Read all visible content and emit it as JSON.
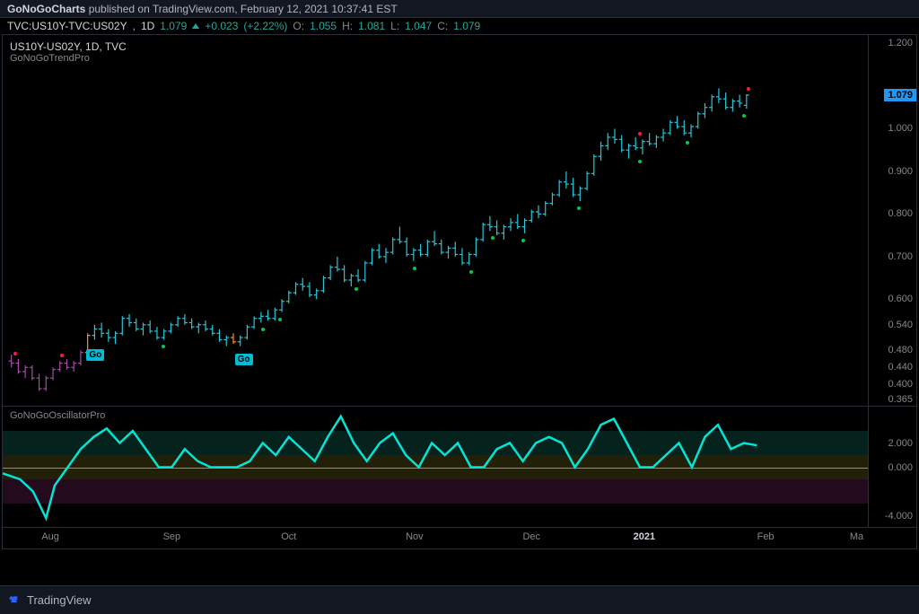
{
  "header": {
    "publisher": "GoNoGoCharts",
    "published_on": "published on TradingView.com,",
    "timestamp": "February 12, 2021 10:37:41 EST"
  },
  "ticker": {
    "symbol": "TVC:US10Y-TVC:US02Y",
    "interval": "1D",
    "last": "1.079",
    "change": "+0.023",
    "change_pct": "(+2.22%)",
    "ohlc": {
      "O": "1.055",
      "H": "1.081",
      "L": "1.047",
      "C": "1.079"
    }
  },
  "main_chart": {
    "legend_title": "US10Y-US02Y, 1D, TVC",
    "legend_sub": "GoNoGoTrendPro",
    "y_ticks": [
      1.2,
      1.0,
      0.9,
      0.8,
      0.7,
      0.6,
      0.54,
      0.48,
      0.44,
      0.4,
      0.365
    ],
    "y_min": 0.35,
    "y_max": 1.22,
    "price_tag": 1.079,
    "bar_color_early": "#a64ca6",
    "bar_color_trend": "#26c6da",
    "go_labels": [
      {
        "x": 0.105,
        "y_val": 0.5,
        "text": "Go"
      },
      {
        "x": 0.276,
        "y_val": 0.49,
        "text": "Go"
      }
    ],
    "green_dots_x": [
      0.185,
      0.3,
      0.32,
      0.408,
      0.475,
      0.54,
      0.565,
      0.6,
      0.665,
      0.735,
      0.79,
      0.855
    ],
    "red_dots_x": [
      0.015,
      0.068,
      0.735,
      0.86
    ],
    "bars": [
      {
        "x": 0.01,
        "o": 0.455,
        "h": 0.47,
        "l": 0.44,
        "c": 0.45,
        "col": "#a64ca6"
      },
      {
        "x": 0.018,
        "o": 0.45,
        "h": 0.46,
        "l": 0.425,
        "c": 0.43,
        "col": "#a64ca6"
      },
      {
        "x": 0.026,
        "o": 0.43,
        "h": 0.445,
        "l": 0.415,
        "c": 0.44,
        "col": "#a64ca6"
      },
      {
        "x": 0.034,
        "o": 0.44,
        "h": 0.445,
        "l": 0.41,
        "c": 0.415,
        "col": "#a64ca6"
      },
      {
        "x": 0.042,
        "o": 0.415,
        "h": 0.425,
        "l": 0.385,
        "c": 0.39,
        "col": "#a64ca6"
      },
      {
        "x": 0.05,
        "o": 0.39,
        "h": 0.42,
        "l": 0.385,
        "c": 0.415,
        "col": "#a64ca6"
      },
      {
        "x": 0.058,
        "o": 0.415,
        "h": 0.44,
        "l": 0.41,
        "c": 0.435,
        "col": "#a64ca6"
      },
      {
        "x": 0.066,
        "o": 0.435,
        "h": 0.455,
        "l": 0.43,
        "c": 0.45,
        "col": "#a64ca6"
      },
      {
        "x": 0.074,
        "o": 0.45,
        "h": 0.46,
        "l": 0.435,
        "c": 0.44,
        "col": "#a64ca6"
      },
      {
        "x": 0.082,
        "o": 0.44,
        "h": 0.455,
        "l": 0.43,
        "c": 0.45,
        "col": "#a64ca6"
      },
      {
        "x": 0.09,
        "o": 0.45,
        "h": 0.48,
        "l": 0.445,
        "c": 0.475,
        "col": "#a64ca6"
      },
      {
        "x": 0.098,
        "o": 0.475,
        "h": 0.52,
        "l": 0.47,
        "c": 0.515,
        "col": "#ff9800"
      },
      {
        "x": 0.106,
        "o": 0.515,
        "h": 0.54,
        "l": 0.505,
        "c": 0.53,
        "col": "#26c6da"
      },
      {
        "x": 0.114,
        "o": 0.53,
        "h": 0.545,
        "l": 0.51,
        "c": 0.52,
        "col": "#26c6da"
      },
      {
        "x": 0.122,
        "o": 0.52,
        "h": 0.53,
        "l": 0.5,
        "c": 0.51,
        "col": "#26c6da"
      },
      {
        "x": 0.13,
        "o": 0.51,
        "h": 0.525,
        "l": 0.495,
        "c": 0.52,
        "col": "#26c6da"
      },
      {
        "x": 0.138,
        "o": 0.52,
        "h": 0.56,
        "l": 0.515,
        "c": 0.555,
        "col": "#26c6da"
      },
      {
        "x": 0.146,
        "o": 0.555,
        "h": 0.565,
        "l": 0.535,
        "c": 0.545,
        "col": "#26c6da"
      },
      {
        "x": 0.154,
        "o": 0.545,
        "h": 0.555,
        "l": 0.525,
        "c": 0.53,
        "col": "#26c6da"
      },
      {
        "x": 0.162,
        "o": 0.53,
        "h": 0.545,
        "l": 0.515,
        "c": 0.54,
        "col": "#26c6da"
      },
      {
        "x": 0.17,
        "o": 0.54,
        "h": 0.55,
        "l": 0.52,
        "c": 0.525,
        "col": "#26c6da"
      },
      {
        "x": 0.178,
        "o": 0.525,
        "h": 0.535,
        "l": 0.505,
        "c": 0.51,
        "col": "#26c6da"
      },
      {
        "x": 0.186,
        "o": 0.51,
        "h": 0.53,
        "l": 0.505,
        "c": 0.525,
        "col": "#26c6da"
      },
      {
        "x": 0.194,
        "o": 0.525,
        "h": 0.545,
        "l": 0.52,
        "c": 0.54,
        "col": "#26c6da"
      },
      {
        "x": 0.202,
        "o": 0.54,
        "h": 0.56,
        "l": 0.535,
        "c": 0.555,
        "col": "#26c6da"
      },
      {
        "x": 0.21,
        "o": 0.555,
        "h": 0.565,
        "l": 0.54,
        "c": 0.545,
        "col": "#26c6da"
      },
      {
        "x": 0.218,
        "o": 0.545,
        "h": 0.555,
        "l": 0.53,
        "c": 0.535,
        "col": "#26c6da"
      },
      {
        "x": 0.226,
        "o": 0.535,
        "h": 0.545,
        "l": 0.52,
        "c": 0.54,
        "col": "#26c6da"
      },
      {
        "x": 0.234,
        "o": 0.54,
        "h": 0.55,
        "l": 0.525,
        "c": 0.53,
        "col": "#26c6da"
      },
      {
        "x": 0.242,
        "o": 0.53,
        "h": 0.54,
        "l": 0.515,
        "c": 0.52,
        "col": "#26c6da"
      },
      {
        "x": 0.25,
        "o": 0.52,
        "h": 0.53,
        "l": 0.5,
        "c": 0.505,
        "col": "#26c6da"
      },
      {
        "x": 0.258,
        "o": 0.505,
        "h": 0.515,
        "l": 0.49,
        "c": 0.51,
        "col": "#26c6da"
      },
      {
        "x": 0.266,
        "o": 0.51,
        "h": 0.52,
        "l": 0.495,
        "c": 0.5,
        "col": "#ff9800"
      },
      {
        "x": 0.274,
        "o": 0.5,
        "h": 0.515,
        "l": 0.49,
        "c": 0.51,
        "col": "#26c6da"
      },
      {
        "x": 0.282,
        "o": 0.51,
        "h": 0.54,
        "l": 0.505,
        "c": 0.535,
        "col": "#26c6da"
      },
      {
        "x": 0.29,
        "o": 0.535,
        "h": 0.56,
        "l": 0.53,
        "c": 0.555,
        "col": "#26c6da"
      },
      {
        "x": 0.298,
        "o": 0.555,
        "h": 0.57,
        "l": 0.545,
        "c": 0.56,
        "col": "#26c6da"
      },
      {
        "x": 0.306,
        "o": 0.56,
        "h": 0.575,
        "l": 0.55,
        "c": 0.555,
        "col": "#26c6da"
      },
      {
        "x": 0.314,
        "o": 0.555,
        "h": 0.58,
        "l": 0.55,
        "c": 0.575,
        "col": "#26c6da"
      },
      {
        "x": 0.322,
        "o": 0.575,
        "h": 0.6,
        "l": 0.57,
        "c": 0.595,
        "col": "#26c6da"
      },
      {
        "x": 0.33,
        "o": 0.595,
        "h": 0.62,
        "l": 0.59,
        "c": 0.615,
        "col": "#26c6da"
      },
      {
        "x": 0.338,
        "o": 0.615,
        "h": 0.64,
        "l": 0.61,
        "c": 0.635,
        "col": "#26c6da"
      },
      {
        "x": 0.346,
        "o": 0.635,
        "h": 0.65,
        "l": 0.62,
        "c": 0.63,
        "col": "#26c6da"
      },
      {
        "x": 0.354,
        "o": 0.63,
        "h": 0.64,
        "l": 0.605,
        "c": 0.61,
        "col": "#26c6da"
      },
      {
        "x": 0.362,
        "o": 0.61,
        "h": 0.625,
        "l": 0.6,
        "c": 0.62,
        "col": "#26c6da"
      },
      {
        "x": 0.37,
        "o": 0.62,
        "h": 0.655,
        "l": 0.615,
        "c": 0.65,
        "col": "#26c6da"
      },
      {
        "x": 0.378,
        "o": 0.65,
        "h": 0.68,
        "l": 0.645,
        "c": 0.675,
        "col": "#26c6da"
      },
      {
        "x": 0.386,
        "o": 0.675,
        "h": 0.7,
        "l": 0.665,
        "c": 0.67,
        "col": "#26c6da"
      },
      {
        "x": 0.394,
        "o": 0.67,
        "h": 0.68,
        "l": 0.64,
        "c": 0.645,
        "col": "#26c6da"
      },
      {
        "x": 0.402,
        "o": 0.645,
        "h": 0.66,
        "l": 0.63,
        "c": 0.655,
        "col": "#26c6da"
      },
      {
        "x": 0.41,
        "o": 0.655,
        "h": 0.67,
        "l": 0.64,
        "c": 0.645,
        "col": "#26c6da"
      },
      {
        "x": 0.418,
        "o": 0.645,
        "h": 0.69,
        "l": 0.64,
        "c": 0.685,
        "col": "#26c6da"
      },
      {
        "x": 0.426,
        "o": 0.685,
        "h": 0.72,
        "l": 0.68,
        "c": 0.715,
        "col": "#26c6da"
      },
      {
        "x": 0.434,
        "o": 0.715,
        "h": 0.73,
        "l": 0.695,
        "c": 0.7,
        "col": "#26c6da"
      },
      {
        "x": 0.442,
        "o": 0.7,
        "h": 0.72,
        "l": 0.685,
        "c": 0.71,
        "col": "#26c6da"
      },
      {
        "x": 0.45,
        "o": 0.71,
        "h": 0.745,
        "l": 0.705,
        "c": 0.74,
        "col": "#26c6da"
      },
      {
        "x": 0.458,
        "o": 0.74,
        "h": 0.77,
        "l": 0.73,
        "c": 0.735,
        "col": "#26c6da"
      },
      {
        "x": 0.466,
        "o": 0.735,
        "h": 0.745,
        "l": 0.7,
        "c": 0.705,
        "col": "#26c6da"
      },
      {
        "x": 0.474,
        "o": 0.705,
        "h": 0.72,
        "l": 0.69,
        "c": 0.715,
        "col": "#26c6da"
      },
      {
        "x": 0.482,
        "o": 0.715,
        "h": 0.73,
        "l": 0.7,
        "c": 0.705,
        "col": "#26c6da"
      },
      {
        "x": 0.49,
        "o": 0.705,
        "h": 0.74,
        "l": 0.7,
        "c": 0.735,
        "col": "#26c6da"
      },
      {
        "x": 0.498,
        "o": 0.735,
        "h": 0.76,
        "l": 0.725,
        "c": 0.73,
        "col": "#26c6da"
      },
      {
        "x": 0.506,
        "o": 0.73,
        "h": 0.74,
        "l": 0.705,
        "c": 0.71,
        "col": "#26c6da"
      },
      {
        "x": 0.514,
        "o": 0.71,
        "h": 0.725,
        "l": 0.695,
        "c": 0.72,
        "col": "#26c6da"
      },
      {
        "x": 0.522,
        "o": 0.72,
        "h": 0.735,
        "l": 0.7,
        "c": 0.705,
        "col": "#26c6da"
      },
      {
        "x": 0.53,
        "o": 0.705,
        "h": 0.72,
        "l": 0.68,
        "c": 0.685,
        "col": "#26c6da"
      },
      {
        "x": 0.538,
        "o": 0.685,
        "h": 0.71,
        "l": 0.68,
        "c": 0.705,
        "col": "#26c6da"
      },
      {
        "x": 0.546,
        "o": 0.705,
        "h": 0.745,
        "l": 0.7,
        "c": 0.74,
        "col": "#26c6da"
      },
      {
        "x": 0.554,
        "o": 0.74,
        "h": 0.78,
        "l": 0.735,
        "c": 0.775,
        "col": "#26c6da"
      },
      {
        "x": 0.562,
        "o": 0.775,
        "h": 0.795,
        "l": 0.76,
        "c": 0.77,
        "col": "#26c6da"
      },
      {
        "x": 0.57,
        "o": 0.77,
        "h": 0.785,
        "l": 0.75,
        "c": 0.755,
        "col": "#26c6da"
      },
      {
        "x": 0.578,
        "o": 0.755,
        "h": 0.775,
        "l": 0.74,
        "c": 0.77,
        "col": "#26c6da"
      },
      {
        "x": 0.586,
        "o": 0.77,
        "h": 0.79,
        "l": 0.76,
        "c": 0.78,
        "col": "#26c6da"
      },
      {
        "x": 0.594,
        "o": 0.78,
        "h": 0.8,
        "l": 0.765,
        "c": 0.77,
        "col": "#26c6da"
      },
      {
        "x": 0.602,
        "o": 0.77,
        "h": 0.79,
        "l": 0.755,
        "c": 0.785,
        "col": "#26c6da"
      },
      {
        "x": 0.61,
        "o": 0.785,
        "h": 0.81,
        "l": 0.78,
        "c": 0.805,
        "col": "#26c6da"
      },
      {
        "x": 0.618,
        "o": 0.805,
        "h": 0.82,
        "l": 0.79,
        "c": 0.8,
        "col": "#26c6da"
      },
      {
        "x": 0.626,
        "o": 0.8,
        "h": 0.83,
        "l": 0.795,
        "c": 0.825,
        "col": "#26c6da"
      },
      {
        "x": 0.634,
        "o": 0.825,
        "h": 0.85,
        "l": 0.82,
        "c": 0.845,
        "col": "#26c6da"
      },
      {
        "x": 0.642,
        "o": 0.845,
        "h": 0.88,
        "l": 0.84,
        "c": 0.875,
        "col": "#26c6da"
      },
      {
        "x": 0.65,
        "o": 0.875,
        "h": 0.9,
        "l": 0.86,
        "c": 0.87,
        "col": "#26c6da"
      },
      {
        "x": 0.658,
        "o": 0.87,
        "h": 0.885,
        "l": 0.84,
        "c": 0.845,
        "col": "#26c6da"
      },
      {
        "x": 0.666,
        "o": 0.845,
        "h": 0.865,
        "l": 0.83,
        "c": 0.86,
        "col": "#26c6da"
      },
      {
        "x": 0.674,
        "o": 0.86,
        "h": 0.9,
        "l": 0.855,
        "c": 0.895,
        "col": "#26c6da"
      },
      {
        "x": 0.682,
        "o": 0.895,
        "h": 0.94,
        "l": 0.89,
        "c": 0.935,
        "col": "#26c6da"
      },
      {
        "x": 0.69,
        "o": 0.935,
        "h": 0.97,
        "l": 0.925,
        "c": 0.96,
        "col": "#26c6da"
      },
      {
        "x": 0.698,
        "o": 0.96,
        "h": 0.99,
        "l": 0.95,
        "c": 0.98,
        "col": "#26c6da"
      },
      {
        "x": 0.706,
        "o": 0.98,
        "h": 1.0,
        "l": 0.965,
        "c": 0.975,
        "col": "#26c6da"
      },
      {
        "x": 0.714,
        "o": 0.975,
        "h": 0.985,
        "l": 0.945,
        "c": 0.95,
        "col": "#26c6da"
      },
      {
        "x": 0.722,
        "o": 0.95,
        "h": 0.965,
        "l": 0.93,
        "c": 0.96,
        "col": "#26c6da"
      },
      {
        "x": 0.73,
        "o": 0.96,
        "h": 0.98,
        "l": 0.95,
        "c": 0.955,
        "col": "#26c6da"
      },
      {
        "x": 0.738,
        "o": 0.955,
        "h": 0.975,
        "l": 0.94,
        "c": 0.97,
        "col": "#26c6da"
      },
      {
        "x": 0.746,
        "o": 0.97,
        "h": 0.99,
        "l": 0.96,
        "c": 0.965,
        "col": "#26c6da"
      },
      {
        "x": 0.754,
        "o": 0.965,
        "h": 0.985,
        "l": 0.955,
        "c": 0.98,
        "col": "#26c6da"
      },
      {
        "x": 0.762,
        "o": 0.98,
        "h": 1.0,
        "l": 0.97,
        "c": 0.99,
        "col": "#26c6da"
      },
      {
        "x": 0.77,
        "o": 0.99,
        "h": 1.02,
        "l": 0.985,
        "c": 1.015,
        "col": "#26c6da"
      },
      {
        "x": 0.778,
        "o": 1.015,
        "h": 1.03,
        "l": 1.0,
        "c": 1.005,
        "col": "#26c6da"
      },
      {
        "x": 0.786,
        "o": 1.005,
        "h": 1.02,
        "l": 0.985,
        "c": 0.99,
        "col": "#26c6da"
      },
      {
        "x": 0.794,
        "o": 0.99,
        "h": 1.01,
        "l": 0.98,
        "c": 1.005,
        "col": "#26c6da"
      },
      {
        "x": 0.802,
        "o": 1.005,
        "h": 1.04,
        "l": 1.0,
        "c": 1.035,
        "col": "#26c6da"
      },
      {
        "x": 0.81,
        "o": 1.035,
        "h": 1.06,
        "l": 1.025,
        "c": 1.05,
        "col": "#26c6da"
      },
      {
        "x": 0.818,
        "o": 1.05,
        "h": 1.08,
        "l": 1.04,
        "c": 1.075,
        "col": "#26c6da"
      },
      {
        "x": 0.826,
        "o": 1.075,
        "h": 1.095,
        "l": 1.06,
        "c": 1.07,
        "col": "#26c6da"
      },
      {
        "x": 0.834,
        "o": 1.07,
        "h": 1.085,
        "l": 1.045,
        "c": 1.05,
        "col": "#26c6da"
      },
      {
        "x": 0.842,
        "o": 1.05,
        "h": 1.07,
        "l": 1.04,
        "c": 1.065,
        "col": "#26c6da"
      },
      {
        "x": 0.85,
        "o": 1.065,
        "h": 1.08,
        "l": 1.05,
        "c": 1.06,
        "col": "#26c6da"
      },
      {
        "x": 0.858,
        "o": 1.055,
        "h": 1.081,
        "l": 1.047,
        "c": 1.079,
        "col": "#26c6da"
      }
    ]
  },
  "oscillator": {
    "label": "GoNoGoOscillatorPro",
    "y_ticks": [
      2.0,
      0.0,
      -4.0
    ],
    "y_min": -5.0,
    "y_max": 5.0,
    "line_color": "#00e5d6",
    "zero_color": "#c9c97a",
    "bands": [
      {
        "from": 1.0,
        "to": 3.0,
        "color": "#0a3830",
        "alpha": 0.6
      },
      {
        "from": -1.0,
        "to": 1.0,
        "color": "#3a3510",
        "alpha": 0.6
      },
      {
        "from": -3.0,
        "to": -1.0,
        "color": "#3a1030",
        "alpha": 0.6
      }
    ],
    "points": [
      [
        0.0,
        -0.5
      ],
      [
        0.02,
        -1.0
      ],
      [
        0.035,
        -2.0
      ],
      [
        0.05,
        -4.2
      ],
      [
        0.06,
        -1.5
      ],
      [
        0.075,
        0.0
      ],
      [
        0.09,
        1.5
      ],
      [
        0.105,
        2.5
      ],
      [
        0.12,
        3.2
      ],
      [
        0.135,
        2.0
      ],
      [
        0.15,
        3.0
      ],
      [
        0.165,
        1.5
      ],
      [
        0.18,
        0.0
      ],
      [
        0.195,
        0.0
      ],
      [
        0.21,
        1.5
      ],
      [
        0.225,
        0.5
      ],
      [
        0.24,
        0.0
      ],
      [
        0.255,
        0.0
      ],
      [
        0.27,
        0.0
      ],
      [
        0.285,
        0.5
      ],
      [
        0.3,
        2.0
      ],
      [
        0.315,
        1.0
      ],
      [
        0.33,
        2.5
      ],
      [
        0.345,
        1.5
      ],
      [
        0.36,
        0.5
      ],
      [
        0.375,
        2.5
      ],
      [
        0.39,
        4.2
      ],
      [
        0.405,
        2.0
      ],
      [
        0.42,
        0.5
      ],
      [
        0.435,
        2.0
      ],
      [
        0.45,
        2.8
      ],
      [
        0.465,
        1.0
      ],
      [
        0.48,
        0.0
      ],
      [
        0.495,
        2.0
      ],
      [
        0.51,
        1.0
      ],
      [
        0.525,
        2.0
      ],
      [
        0.54,
        0.0
      ],
      [
        0.555,
        0.0
      ],
      [
        0.57,
        1.5
      ],
      [
        0.585,
        2.0
      ],
      [
        0.6,
        0.5
      ],
      [
        0.615,
        2.0
      ],
      [
        0.63,
        2.5
      ],
      [
        0.645,
        2.0
      ],
      [
        0.66,
        0.0
      ],
      [
        0.675,
        1.5
      ],
      [
        0.69,
        3.5
      ],
      [
        0.705,
        4.0
      ],
      [
        0.72,
        2.0
      ],
      [
        0.735,
        0.0
      ],
      [
        0.75,
        0.0
      ],
      [
        0.765,
        1.0
      ],
      [
        0.78,
        2.0
      ],
      [
        0.795,
        0.0
      ],
      [
        0.81,
        2.5
      ],
      [
        0.825,
        3.5
      ],
      [
        0.84,
        1.5
      ],
      [
        0.855,
        2.0
      ],
      [
        0.87,
        1.8
      ]
    ]
  },
  "xaxis": {
    "labels": [
      {
        "x": 0.055,
        "t": "Aug"
      },
      {
        "x": 0.195,
        "t": "Sep"
      },
      {
        "x": 0.33,
        "t": "Oct"
      },
      {
        "x": 0.475,
        "t": "Nov"
      },
      {
        "x": 0.61,
        "t": "Dec"
      },
      {
        "x": 0.74,
        "t": "2021",
        "bold": true
      },
      {
        "x": 0.88,
        "t": "Feb"
      },
      {
        "x": 0.985,
        "t": "Ma"
      }
    ]
  },
  "footer": {
    "brand": "TradingView"
  }
}
